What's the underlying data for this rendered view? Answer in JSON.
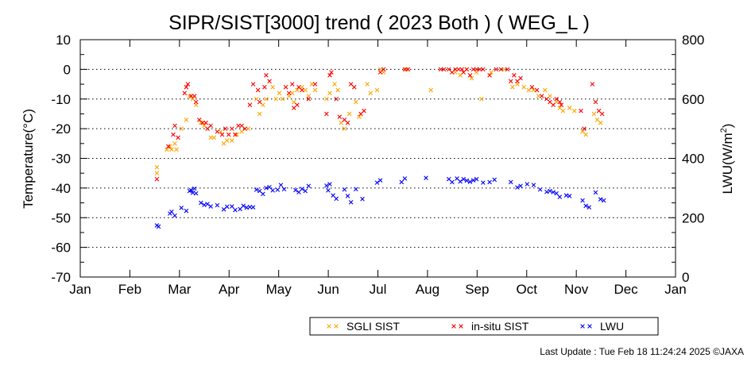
{
  "chart_data": {
    "type": "scatter",
    "title": "SIPR/SIST[3000] trend ( 2023 Both ) ( WEG_L )",
    "ylabel": "Temperature(°C)",
    "y2label_main": "LWU(W/m",
    "y2label_sup": "2",
    "y2label_end": ")",
    "ylim": [
      -70,
      10
    ],
    "y2lim": [
      0,
      800
    ],
    "yticks": [
      "10",
      "0",
      "-10",
      "-20",
      "-30",
      "-40",
      "-50",
      "-60",
      "-70"
    ],
    "y2ticks": [
      "800",
      "600",
      "400",
      "200",
      "0"
    ],
    "x_range_days": [
      0,
      365
    ],
    "month_labels": [
      "Jan",
      "Feb",
      "Mar",
      "Apr",
      "May",
      "Jun",
      "Jul",
      "Aug",
      "Sep",
      "Oct",
      "Nov",
      "Dec",
      "Jan"
    ],
    "grid": "horizontal dotted",
    "legend_position": "bottom-right",
    "series": [
      {
        "name": "SGLI SIST",
        "color": "#ffa500",
        "axis": "left",
        "points": [
          [
            47,
            -33
          ],
          [
            47,
            -35
          ],
          [
            53,
            -27
          ],
          [
            55,
            -26
          ],
          [
            56,
            -27
          ],
          [
            58,
            -25
          ],
          [
            59,
            -27
          ],
          [
            62,
            -20
          ],
          [
            65,
            -17
          ],
          [
            67,
            -9
          ],
          [
            69,
            -10
          ],
          [
            71,
            -12
          ],
          [
            74,
            -18
          ],
          [
            76,
            -19
          ],
          [
            78,
            -20
          ],
          [
            80,
            -23
          ],
          [
            82,
            -23
          ],
          [
            86,
            -21
          ],
          [
            88,
            -25
          ],
          [
            90,
            -24
          ],
          [
            93,
            -24
          ],
          [
            96,
            -22
          ],
          [
            99,
            -21
          ],
          [
            103,
            -20
          ],
          [
            108,
            -10
          ],
          [
            110,
            -15
          ],
          [
            112,
            -12
          ],
          [
            114,
            -10
          ],
          [
            118,
            -6
          ],
          [
            120,
            -10
          ],
          [
            122,
            -8
          ],
          [
            124,
            -10
          ],
          [
            128,
            -9
          ],
          [
            130,
            -8
          ],
          [
            131,
            -11
          ],
          [
            133,
            -7
          ],
          [
            136,
            -6
          ],
          [
            138,
            -7
          ],
          [
            140,
            -9
          ],
          [
            142,
            -5
          ],
          [
            144,
            -7
          ],
          [
            151,
            -10
          ],
          [
            153,
            -8
          ],
          [
            156,
            -5
          ],
          [
            158,
            -7
          ],
          [
            160,
            -18
          ],
          [
            162,
            -20
          ],
          [
            165,
            -15
          ],
          [
            169,
            -11
          ],
          [
            171,
            -16
          ],
          [
            176,
            -5
          ],
          [
            178,
            -8
          ],
          [
            182,
            -7
          ],
          [
            184,
            0
          ],
          [
            186,
            -1
          ],
          [
            200,
            0
          ],
          [
            215,
            -7
          ],
          [
            230,
            -1
          ],
          [
            233,
            -2
          ],
          [
            237,
            0
          ],
          [
            240,
            -3
          ],
          [
            243,
            -1
          ],
          [
            246,
            -10
          ],
          [
            252,
            -1
          ],
          [
            260,
            0
          ],
          [
            265,
            -6
          ],
          [
            268,
            -5
          ],
          [
            272,
            -6
          ],
          [
            275,
            -7
          ],
          [
            278,
            -7
          ],
          [
            281,
            -9
          ],
          [
            285,
            -7
          ],
          [
            288,
            -9
          ],
          [
            292,
            -11
          ],
          [
            294,
            -13
          ],
          [
            296,
            -14
          ],
          [
            300,
            -13
          ],
          [
            303,
            -14
          ],
          [
            308,
            -21
          ],
          [
            310,
            -22
          ],
          [
            315,
            -15
          ],
          [
            317,
            -17
          ],
          [
            319,
            -18
          ]
        ]
      },
      {
        "name": "in-situ SIST",
        "color": "#ff0000",
        "axis": "left",
        "points": [
          [
            47,
            -37
          ],
          [
            54,
            -26
          ],
          [
            57,
            -22
          ],
          [
            58,
            -19
          ],
          [
            60,
            -23
          ],
          [
            64,
            -8
          ],
          [
            65,
            -6
          ],
          [
            66,
            -5
          ],
          [
            68,
            -9
          ],
          [
            70,
            -9
          ],
          [
            71,
            -11
          ],
          [
            73,
            -17
          ],
          [
            75,
            -18
          ],
          [
            77,
            -18
          ],
          [
            78,
            -20
          ],
          [
            80,
            -19
          ],
          [
            84,
            -21
          ],
          [
            87,
            -22
          ],
          [
            89,
            -20
          ],
          [
            91,
            -22
          ],
          [
            93,
            -20
          ],
          [
            95,
            -22
          ],
          [
            97,
            -19
          ],
          [
            99,
            -19
          ],
          [
            101,
            -20
          ],
          [
            104,
            -12
          ],
          [
            106,
            -5
          ],
          [
            109,
            -7
          ],
          [
            110,
            -11
          ],
          [
            113,
            -6
          ],
          [
            114,
            -2
          ],
          [
            116,
            -4
          ],
          [
            126,
            -6
          ],
          [
            128,
            -8
          ],
          [
            130,
            -5
          ],
          [
            131,
            -13
          ],
          [
            133,
            -12
          ],
          [
            134,
            -6
          ],
          [
            136,
            -7
          ],
          [
            140,
            -10
          ],
          [
            144,
            -5
          ],
          [
            151,
            -15
          ],
          [
            153,
            -2
          ],
          [
            154,
            -1
          ],
          [
            157,
            -10
          ],
          [
            159,
            -16
          ],
          [
            162,
            -17
          ],
          [
            164,
            -18
          ],
          [
            166,
            -5
          ],
          [
            168,
            -6
          ],
          [
            172,
            -15
          ],
          [
            174,
            -14
          ],
          [
            184,
            -1
          ],
          [
            186,
            0
          ],
          [
            199,
            0
          ],
          [
            201,
            0
          ],
          [
            221,
            0
          ],
          [
            223,
            0
          ],
          [
            226,
            0
          ],
          [
            228,
            -1
          ],
          [
            230,
            0
          ],
          [
            232,
            0
          ],
          [
            234,
            0
          ],
          [
            235,
            -1
          ],
          [
            237,
            0
          ],
          [
            239,
            -2
          ],
          [
            241,
            0
          ],
          [
            243,
            0
          ],
          [
            245,
            0
          ],
          [
            247,
            0
          ],
          [
            251,
            -2
          ],
          [
            255,
            0
          ],
          [
            258,
            0
          ],
          [
            262,
            0
          ],
          [
            264,
            -4
          ],
          [
            266,
            -2
          ],
          [
            268,
            -4
          ],
          [
            270,
            -3
          ],
          [
            277,
            -6
          ],
          [
            280,
            -7
          ],
          [
            283,
            -9
          ],
          [
            286,
            -10
          ],
          [
            288,
            -11
          ],
          [
            290,
            -12
          ],
          [
            292,
            -10
          ],
          [
            294,
            -11
          ],
          [
            295,
            -12
          ],
          [
            307,
            -14
          ],
          [
            309,
            -20
          ],
          [
            314,
            -5
          ],
          [
            316,
            -11
          ],
          [
            318,
            -14
          ],
          [
            320,
            -15
          ]
        ]
      },
      {
        "name": "LWU",
        "color": "#0000ff",
        "axis": "right",
        "points": [
          [
            47,
            174
          ],
          [
            48,
            170
          ],
          [
            55,
            214
          ],
          [
            56,
            220
          ],
          [
            58,
            207
          ],
          [
            62,
            233
          ],
          [
            65,
            223
          ],
          [
            67,
            290
          ],
          [
            68,
            293
          ],
          [
            69,
            284
          ],
          [
            70,
            298
          ],
          [
            71,
            282
          ],
          [
            74,
            250
          ],
          [
            76,
            243
          ],
          [
            78,
            246
          ],
          [
            80,
            238
          ],
          [
            84,
            242
          ],
          [
            88,
            228
          ],
          [
            90,
            237
          ],
          [
            93,
            238
          ],
          [
            95,
            226
          ],
          [
            98,
            229
          ],
          [
            100,
            240
          ],
          [
            102,
            234
          ],
          [
            104,
            236
          ],
          [
            106,
            235
          ],
          [
            108,
            294
          ],
          [
            110,
            290
          ],
          [
            112,
            280
          ],
          [
            114,
            300
          ],
          [
            116,
            303
          ],
          [
            118,
            292
          ],
          [
            121,
            294
          ],
          [
            123,
            310
          ],
          [
            125,
            296
          ],
          [
            132,
            293
          ],
          [
            134,
            286
          ],
          [
            136,
            297
          ],
          [
            138,
            290
          ],
          [
            140,
            307
          ],
          [
            151,
            308
          ],
          [
            152,
            292
          ],
          [
            153,
            313
          ],
          [
            155,
            275
          ],
          [
            157,
            264
          ],
          [
            162,
            295
          ],
          [
            164,
            273
          ],
          [
            166,
            252
          ],
          [
            169,
            296
          ],
          [
            173,
            263
          ],
          [
            182,
            318
          ],
          [
            184,
            326
          ],
          [
            197,
            320
          ],
          [
            199,
            332
          ],
          [
            212,
            334
          ],
          [
            226,
            330
          ],
          [
            228,
            320
          ],
          [
            231,
            332
          ],
          [
            233,
            322
          ],
          [
            235,
            330
          ],
          [
            237,
            325
          ],
          [
            239,
            321
          ],
          [
            241,
            326
          ],
          [
            243,
            330
          ],
          [
            247,
            318
          ],
          [
            251,
            320
          ],
          [
            254,
            328
          ],
          [
            264,
            320
          ],
          [
            268,
            302
          ],
          [
            270,
            307
          ],
          [
            274,
            313
          ],
          [
            278,
            310
          ],
          [
            282,
            295
          ],
          [
            286,
            287
          ],
          [
            288,
            290
          ],
          [
            290,
            286
          ],
          [
            292,
            282
          ],
          [
            294,
            270
          ],
          [
            298,
            275
          ],
          [
            300,
            273
          ],
          [
            308,
            258
          ],
          [
            310,
            240
          ],
          [
            312,
            235
          ],
          [
            316,
            285
          ],
          [
            319,
            262
          ],
          [
            321,
            258
          ]
        ]
      }
    ],
    "footer_text": "Last Update : Tue Feb 18 11:24:24 2025  ©JAXA"
  }
}
